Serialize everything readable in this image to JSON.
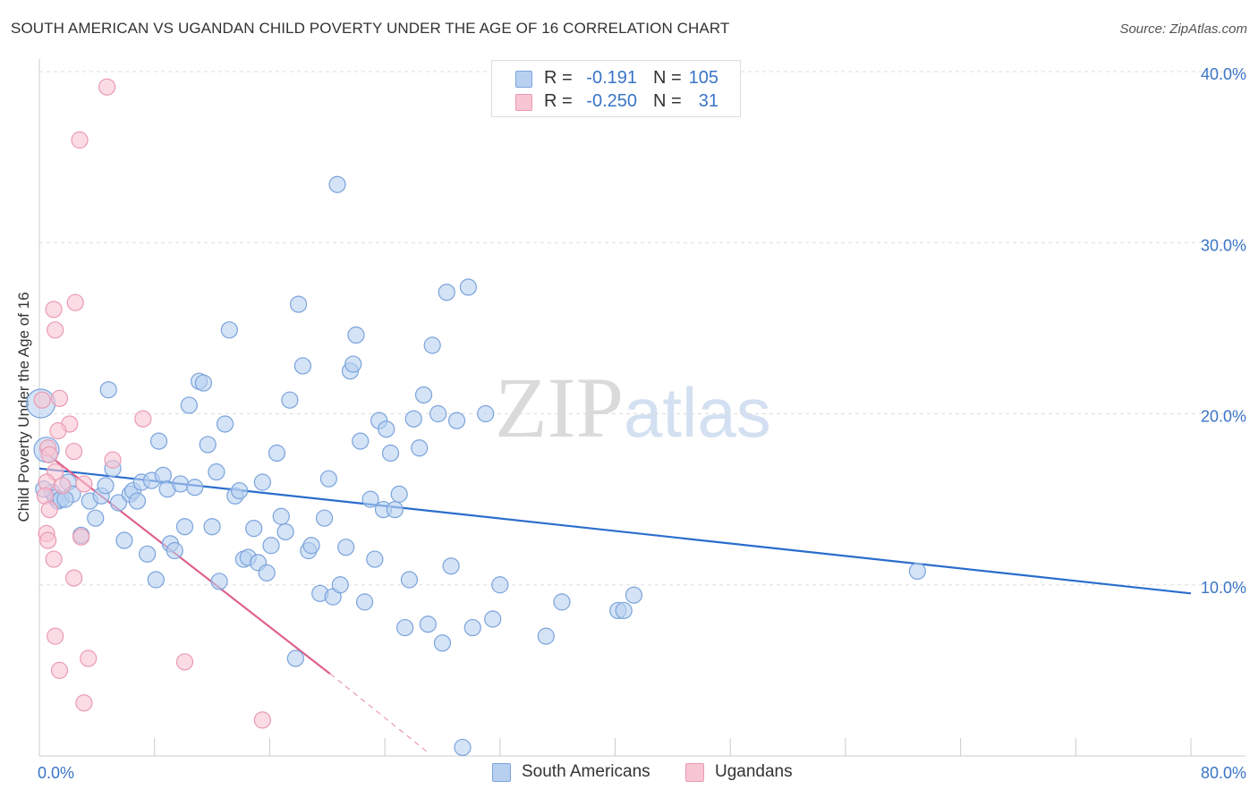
{
  "header": {
    "title": "SOUTH AMERICAN VS UGANDAN CHILD POVERTY UNDER THE AGE OF 16 CORRELATION CHART",
    "source": "Source: ZipAtlas.com"
  },
  "watermark": {
    "zip": "ZIP",
    "atlas": "atlas"
  },
  "legend": {
    "rows": [
      {
        "r_label": "R =",
        "r_value": "-0.191",
        "n_label": "N =",
        "n_value": "105"
      },
      {
        "r_label": "R =",
        "r_value": "-0.250",
        "n_label": "N =",
        "n_value": "31"
      }
    ]
  },
  "colors": {
    "blue_fill": "#b8d0f0",
    "blue_stroke": "#7aa3dc",
    "blue_line": "#2a6dcc",
    "pink_fill": "#f8c5d3",
    "pink_stroke": "#eb9ab2",
    "pink_line": "#e0608d",
    "grid": "#dddddd",
    "axis": "#cccccc",
    "tick_text": "#3a74c7"
  },
  "chart_data": {
    "type": "scatter",
    "title": "SOUTH AMERICAN VS UGANDAN CHILD POVERTY UNDER THE AGE OF 16 CORRELATION CHART",
    "xlabel": "",
    "ylabel": "Child Poverty Under the Age of 16",
    "xlim": [
      0,
      80
    ],
    "ylim": [
      0,
      40
    ],
    "x_tick_labels": [
      "0.0%",
      "80.0%"
    ],
    "y_ticks": [
      {
        "value": 10,
        "label": "10.0%"
      },
      {
        "value": 20,
        "label": "20.0%"
      },
      {
        "value": 30,
        "label": "30.0%"
      },
      {
        "value": 40,
        "label": "40.0%"
      }
    ],
    "grid": true,
    "legend_position": "top-center",
    "series": [
      {
        "name": "South Americans",
        "color": "#b8d0f0",
        "points": [
          [
            0.1,
            20.6
          ],
          [
            0.5,
            17.9
          ],
          [
            0.9,
            15.4
          ],
          [
            1.1,
            15.1
          ],
          [
            1.3,
            14.9
          ],
          [
            1.5,
            15.0
          ],
          [
            2.0,
            16.0
          ],
          [
            2.3,
            15.3
          ],
          [
            2.9,
            12.9
          ],
          [
            3.5,
            14.9
          ],
          [
            3.9,
            13.9
          ],
          [
            4.3,
            15.2
          ],
          [
            4.6,
            15.8
          ],
          [
            4.8,
            21.4
          ],
          [
            5.1,
            16.8
          ],
          [
            5.5,
            14.8
          ],
          [
            5.9,
            12.6
          ],
          [
            6.3,
            15.3
          ],
          [
            6.5,
            15.5
          ],
          [
            6.8,
            14.9
          ],
          [
            7.1,
            16.0
          ],
          [
            7.5,
            11.8
          ],
          [
            7.8,
            16.1
          ],
          [
            8.1,
            10.3
          ],
          [
            8.3,
            18.4
          ],
          [
            8.6,
            16.4
          ],
          [
            8.9,
            15.6
          ],
          [
            9.1,
            12.4
          ],
          [
            9.4,
            12.0
          ],
          [
            9.8,
            15.9
          ],
          [
            10.1,
            13.4
          ],
          [
            10.4,
            20.5
          ],
          [
            10.8,
            15.7
          ],
          [
            11.1,
            21.9
          ],
          [
            11.4,
            21.8
          ],
          [
            11.7,
            18.2
          ],
          [
            12.0,
            13.4
          ],
          [
            12.3,
            16.6
          ],
          [
            12.5,
            10.2
          ],
          [
            12.9,
            19.4
          ],
          [
            13.2,
            24.9
          ],
          [
            13.6,
            15.2
          ],
          [
            13.9,
            15.5
          ],
          [
            14.2,
            11.5
          ],
          [
            14.5,
            11.6
          ],
          [
            14.9,
            13.3
          ],
          [
            15.2,
            11.3
          ],
          [
            15.5,
            16.0
          ],
          [
            15.8,
            10.7
          ],
          [
            16.1,
            12.3
          ],
          [
            16.5,
            17.7
          ],
          [
            16.8,
            14.0
          ],
          [
            17.1,
            13.1
          ],
          [
            17.4,
            20.8
          ],
          [
            17.8,
            5.7
          ],
          [
            18.0,
            26.4
          ],
          [
            18.3,
            22.8
          ],
          [
            18.7,
            12.0
          ],
          [
            18.9,
            12.3
          ],
          [
            19.5,
            9.5
          ],
          [
            19.8,
            13.9
          ],
          [
            20.1,
            16.2
          ],
          [
            20.4,
            9.3
          ],
          [
            20.7,
            33.4
          ],
          [
            20.9,
            10.0
          ],
          [
            21.3,
            12.2
          ],
          [
            21.6,
            22.5
          ],
          [
            21.8,
            22.9
          ],
          [
            22.0,
            24.6
          ],
          [
            22.3,
            18.4
          ],
          [
            22.6,
            9.0
          ],
          [
            23.0,
            15.0
          ],
          [
            23.3,
            11.5
          ],
          [
            23.6,
            19.6
          ],
          [
            23.9,
            14.4
          ],
          [
            24.1,
            19.1
          ],
          [
            24.4,
            17.7
          ],
          [
            24.7,
            14.4
          ],
          [
            25.0,
            15.3
          ],
          [
            25.4,
            7.5
          ],
          [
            25.7,
            10.3
          ],
          [
            26.0,
            19.7
          ],
          [
            26.4,
            18.0
          ],
          [
            26.7,
            21.1
          ],
          [
            27.0,
            7.7
          ],
          [
            27.3,
            24.0
          ],
          [
            27.7,
            20.0
          ],
          [
            28.0,
            6.6
          ],
          [
            28.3,
            27.1
          ],
          [
            28.6,
            11.1
          ],
          [
            29.0,
            19.6
          ],
          [
            29.4,
            0.5
          ],
          [
            29.8,
            27.4
          ],
          [
            30.1,
            7.5
          ],
          [
            31.0,
            20.0
          ],
          [
            31.5,
            8.0
          ],
          [
            32.0,
            10.0
          ],
          [
            35.2,
            7.0
          ],
          [
            36.3,
            9.0
          ],
          [
            40.2,
            8.5
          ],
          [
            40.6,
            8.5
          ],
          [
            41.3,
            9.4
          ],
          [
            61.0,
            10.8
          ],
          [
            0.3,
            15.6
          ],
          [
            1.8,
            15.0
          ]
        ]
      },
      {
        "name": "Ugandans",
        "color": "#f8c5d3",
        "points": [
          [
            4.7,
            39.1
          ],
          [
            2.8,
            36.0
          ],
          [
            2.5,
            26.5
          ],
          [
            1.0,
            26.1
          ],
          [
            1.1,
            24.9
          ],
          [
            0.2,
            20.8
          ],
          [
            1.4,
            20.9
          ],
          [
            2.1,
            19.4
          ],
          [
            7.2,
            19.7
          ],
          [
            1.3,
            19.0
          ],
          [
            0.6,
            18.0
          ],
          [
            2.4,
            17.8
          ],
          [
            5.1,
            17.3
          ],
          [
            0.7,
            17.6
          ],
          [
            1.1,
            16.6
          ],
          [
            0.5,
            16.0
          ],
          [
            1.6,
            15.8
          ],
          [
            3.1,
            15.9
          ],
          [
            0.4,
            15.2
          ],
          [
            0.7,
            14.4
          ],
          [
            0.5,
            13.0
          ],
          [
            2.9,
            12.8
          ],
          [
            0.6,
            12.6
          ],
          [
            1.0,
            11.5
          ],
          [
            2.4,
            10.4
          ],
          [
            1.1,
            7.0
          ],
          [
            1.4,
            5.0
          ],
          [
            3.4,
            5.7
          ],
          [
            10.1,
            5.5
          ],
          [
            3.1,
            3.1
          ],
          [
            15.5,
            2.1
          ]
        ]
      }
    ],
    "trend_lines": [
      {
        "series": "South Americans",
        "x": [
          0,
          80
        ],
        "y": [
          16.8,
          9.5
        ]
      },
      {
        "series": "Ugandans",
        "x": [
          0,
          20.2
        ],
        "y": [
          18.0,
          4.8
        ],
        "dashed_to": [
          27.0,
          0.2
        ]
      }
    ]
  },
  "bottom_legend": {
    "items": [
      {
        "label": "South Americans"
      },
      {
        "label": "Ugandans"
      }
    ]
  }
}
